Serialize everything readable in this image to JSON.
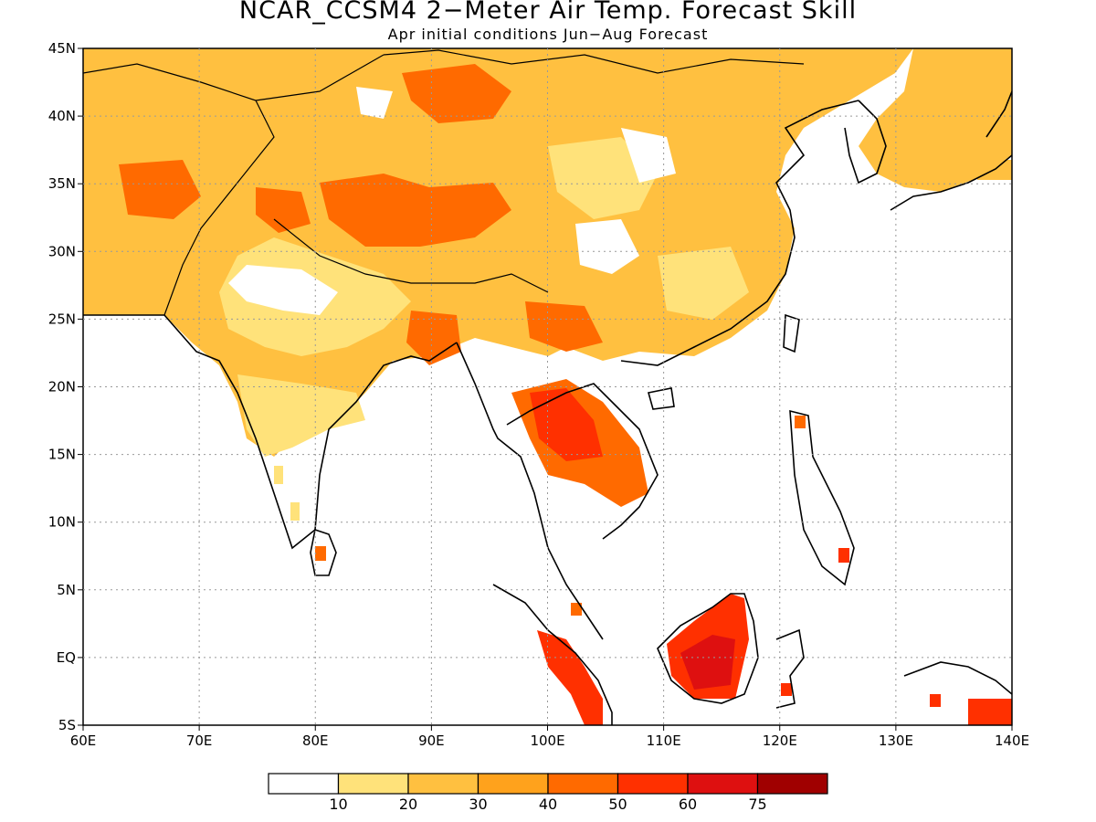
{
  "title": "NCAR_CCSM4 2−Meter Air Temp. Forecast Skill",
  "subtitle": "Apr initial conditions  Jun−Aug Forecast",
  "map": {
    "lon_range": [
      60,
      140
    ],
    "lat_range": [
      -5,
      45
    ],
    "lon_ticks": [
      "60E",
      "70E",
      "80E",
      "90E",
      "100E",
      "110E",
      "120E",
      "130E",
      "140E"
    ],
    "lat_ticks": [
      "5S",
      "EQ",
      "5N",
      "10N",
      "15N",
      "20N",
      "25N",
      "30N",
      "35N",
      "40N",
      "45N"
    ],
    "grid_style": "dotted"
  },
  "colorbar": {
    "labels": [
      "10",
      "20",
      "30",
      "40",
      "50",
      "60",
      "75"
    ],
    "colors": [
      "#ffffff",
      "#ffe27a",
      "#ffc040",
      "#ffa21c",
      "#ff6a00",
      "#ff3000",
      "#de1010",
      "#a00000"
    ]
  }
}
